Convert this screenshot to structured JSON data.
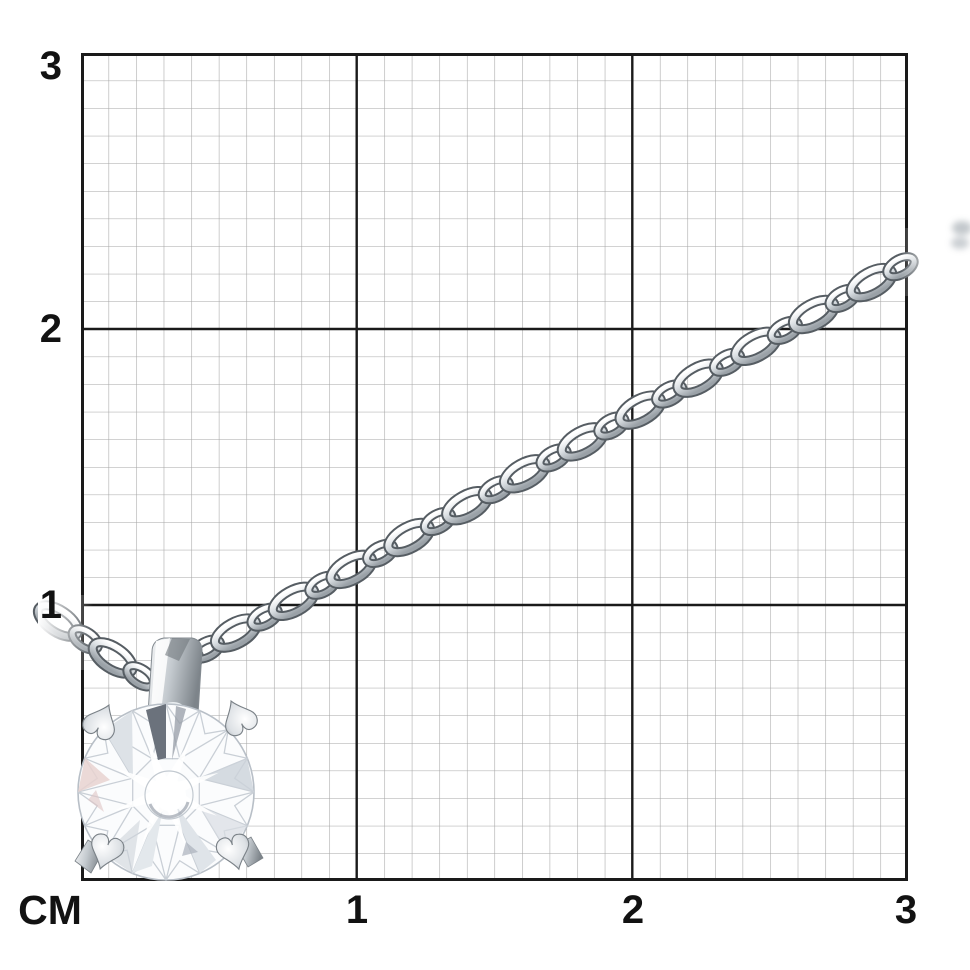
{
  "ruler": {
    "unit_label": "CM",
    "left_axis_labels": [
      "3",
      "2",
      "1"
    ],
    "bottom_axis_labels": [
      "1",
      "2",
      "3"
    ],
    "range_cm": [
      0,
      3
    ],
    "minor_divisions_per_cm": 10
  },
  "scene": {
    "subject": "Round brilliant diamond solitaire pendant on a diamond-cut cable chain",
    "pendant": "Round diamond in four-prong setting with heart-shaped prong tips and metal bail",
    "chain": "Silver / white-gold cable chain running diagonally from pendant at lower left to upper right"
  },
  "colors": {
    "background": "#ffffff",
    "grid_minor": "#a5a5a5",
    "grid_major": "#1a1a1a",
    "label_text": "#121212",
    "metal_light": "#fbfcfd",
    "metal_mid": "#c3c9ce",
    "metal_dark": "#565d63",
    "diamond_facet_line": "#c7cdd4",
    "diamond_dark_facet": "#6b727c",
    "diamond_pink_tint": "#e8d2d0"
  }
}
